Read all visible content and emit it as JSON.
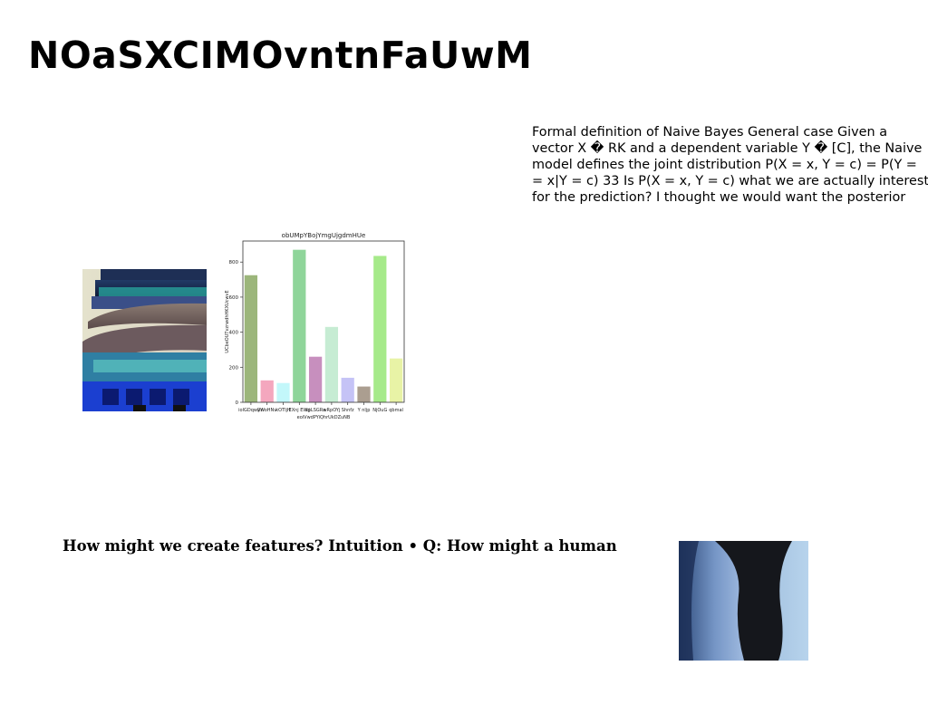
{
  "slide": {
    "title": "NOaSXCIMOvntnFaUwM",
    "paragraph_lines": [
      "Formal definition of Naive Bayes General case Given a",
      "vector X � RK and a dependent variable Y � [C], the Naive",
      "model defines the joint distribution P(X = x, Y = c) = P(Y =",
      "= x|Y = c) 33 Is P(X = x, Y = c) what we are actually interested",
      "for the prediction? I thought we would want the posterior"
    ],
    "caption": "How might we create features? Intuition • Q: How might a human",
    "images": {
      "temple_photo": "temple-of-heaven-photo",
      "person_photo": "person-blue-tint-photo"
    }
  },
  "chart_data": {
    "type": "bar",
    "title": "obUMpYBojYmgUjgdmHUe",
    "xlabel": "eoiVwdPYiQhrUkDZuNB",
    "ylabel": "UCbeOUTvzrwdhHKXUcwvE",
    "categories": [
      "iolGDqwRn",
      "yWoHNv",
      "kOTIjH",
      "EXnj EWij",
      "xpLSGRn",
      "wRpOYj",
      "Shnfz",
      "Y nljp",
      "NjOuG",
      "qbmal"
    ],
    "values": [
      725,
      125,
      110,
      870,
      260,
      430,
      140,
      90,
      835,
      250
    ],
    "colors": [
      "#9cb67b",
      "#f4a7be",
      "#c3f7fa",
      "#8fd59a",
      "#c78fbe",
      "#c6ecd3",
      "#c5c3f6",
      "#ab9e90",
      "#a6ea8a",
      "#e8f3a6"
    ],
    "yticks": [
      0,
      200,
      400,
      600,
      800
    ],
    "ylim": [
      0,
      920
    ],
    "grid": false
  }
}
